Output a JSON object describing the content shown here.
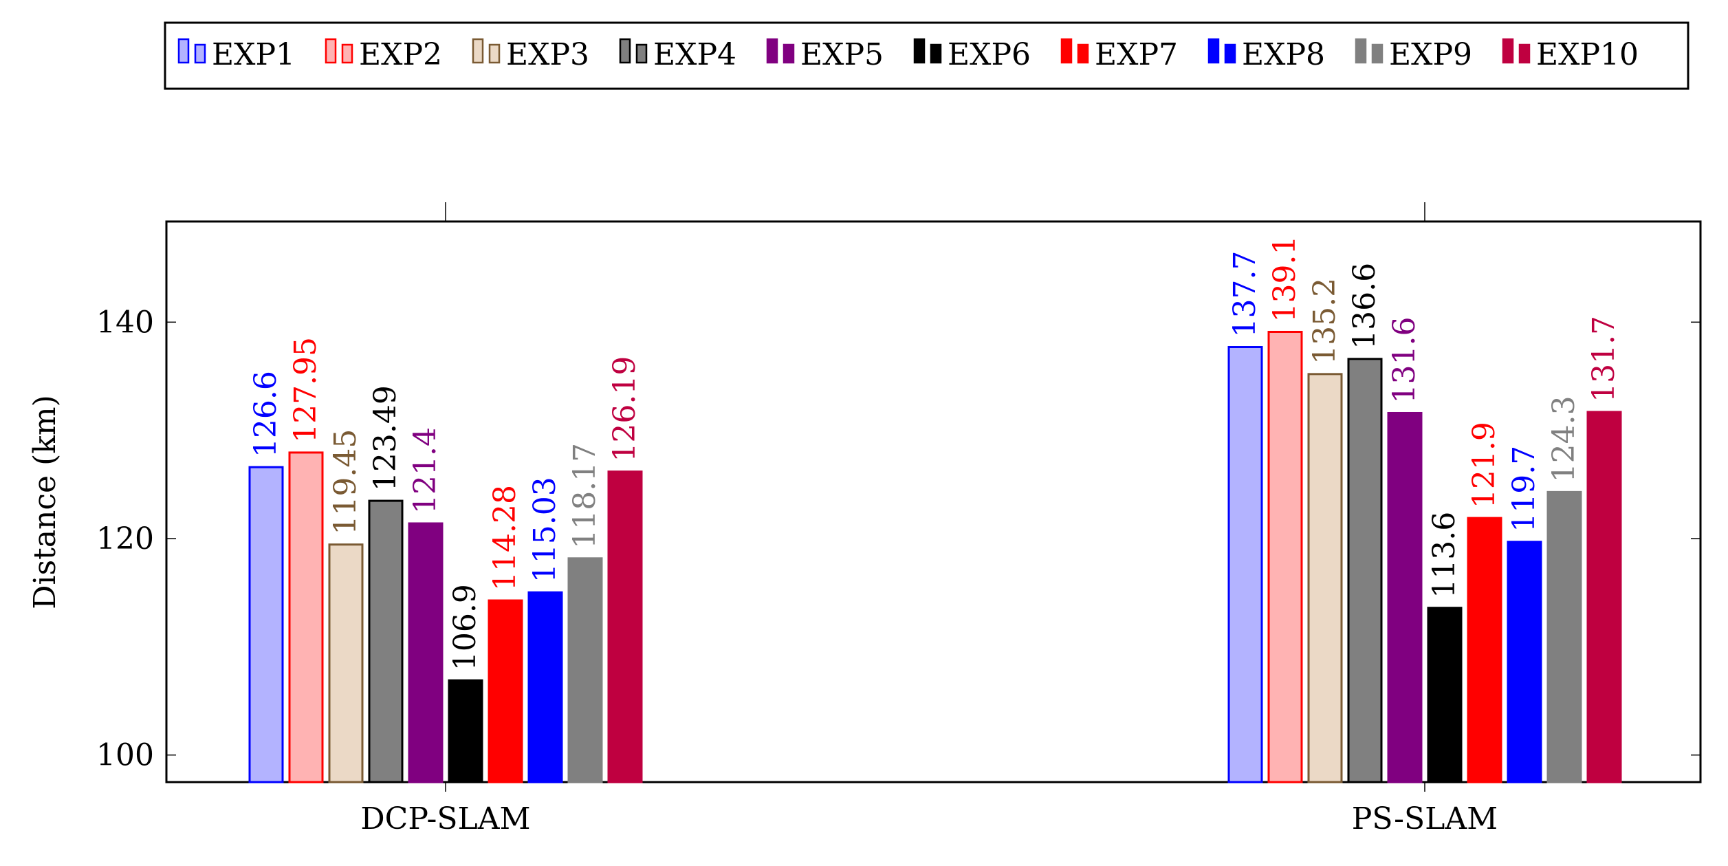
{
  "chart_data": {
    "type": "bar",
    "title": "",
    "xlabel": "",
    "ylabel": "Distance (km)",
    "ylim": [
      97.5,
      149.3
    ],
    "yticks": [
      100,
      120,
      140
    ],
    "grid": false,
    "legend_position": "top",
    "categories": [
      "DCP-SLAM",
      "PS-SLAM"
    ],
    "series": [
      {
        "name": "EXP1",
        "values": [
          126.6,
          137.7
        ],
        "labels": [
          "126.6",
          "137.7"
        ],
        "fill": "#b3b3ff",
        "stroke": "#0000ff",
        "label_color": "#0000ff"
      },
      {
        "name": "EXP2",
        "values": [
          127.95,
          139.1
        ],
        "labels": [
          "127.95",
          "139.1"
        ],
        "fill": "#ffb3b3",
        "stroke": "#ff0000",
        "label_color": "#ff0000"
      },
      {
        "name": "EXP3",
        "values": [
          119.45,
          135.2
        ],
        "labels": [
          "119.45",
          "135.2"
        ],
        "fill": "#ebd9c6",
        "stroke": "#7a5a33",
        "label_color": "#7a5a33"
      },
      {
        "name": "EXP4",
        "values": [
          123.49,
          136.6
        ],
        "labels": [
          "123.49",
          "136.6"
        ],
        "fill": "#808080",
        "stroke": "#000000",
        "label_color": "#000000"
      },
      {
        "name": "EXP5",
        "values": [
          121.4,
          131.6
        ],
        "labels": [
          "121.4",
          "131.6"
        ],
        "fill": "#800080",
        "stroke": "#800080",
        "label_color": "#800080"
      },
      {
        "name": "EXP6",
        "values": [
          106.9,
          113.6
        ],
        "labels": [
          "106.9",
          "113.6"
        ],
        "fill": "#000000",
        "stroke": "#000000",
        "label_color": "#000000"
      },
      {
        "name": "EXP7",
        "values": [
          114.28,
          121.9
        ],
        "labels": [
          "114.28",
          "121.9"
        ],
        "fill": "#ff0000",
        "stroke": "#ff0000",
        "label_color": "#ff0000"
      },
      {
        "name": "EXP8",
        "values": [
          115.03,
          119.7
        ],
        "labels": [
          "115.03",
          "119.7"
        ],
        "fill": "#0000ff",
        "stroke": "#0000ff",
        "label_color": "#0000ff"
      },
      {
        "name": "EXP9",
        "values": [
          118.17,
          124.3
        ],
        "labels": [
          "118.17",
          "124.3"
        ],
        "fill": "#808080",
        "stroke": "#808080",
        "label_color": "#808080"
      },
      {
        "name": "EXP10",
        "values": [
          126.19,
          131.7
        ],
        "labels": [
          "126.19",
          "131.7"
        ],
        "fill": "#bf0040",
        "stroke": "#bf0040",
        "label_color": "#bf0040"
      }
    ]
  }
}
